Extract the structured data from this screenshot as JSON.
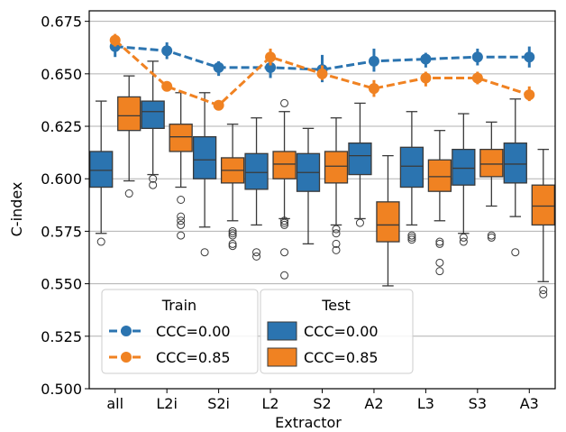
{
  "chart_data": {
    "type": "box+pointplot",
    "xlabel": "Extractor",
    "ylabel": "C-index",
    "ylim": [
      0.5,
      0.68
    ],
    "yticks": [
      "0.500",
      "0.525",
      "0.550",
      "0.575",
      "0.600",
      "0.625",
      "0.650",
      "0.675"
    ],
    "categories": [
      "all",
      "L2i",
      "S2i",
      "L2",
      "S2",
      "A2",
      "L3",
      "S3",
      "A3"
    ],
    "grid": "horizontal",
    "legend_placement": "lower-left",
    "legends": {
      "train": {
        "title": "Train",
        "entries": [
          "CCC=0.00",
          "CCC=0.85"
        ]
      },
      "test": {
        "title": "Test",
        "entries": [
          "CCC=0.00",
          "CCC=0.85"
        ]
      }
    },
    "colors": {
      "ccc_0_00": "#2b74b0",
      "ccc_0_85": "#f08222"
    },
    "train_series": [
      {
        "name": "CCC=0.00",
        "values": [
          0.663,
          0.661,
          0.653,
          0.653,
          0.652,
          0.656,
          0.657,
          0.658,
          0.658
        ],
        "err_low": [
          0.658,
          0.657,
          0.649,
          0.648,
          0.646,
          0.651,
          0.653,
          0.654,
          0.653
        ],
        "err_high": [
          0.667,
          0.665,
          0.656,
          0.658,
          0.659,
          0.662,
          0.66,
          0.662,
          0.663
        ]
      },
      {
        "name": "CCC=0.85",
        "values": [
          0.666,
          0.644,
          0.635,
          0.658,
          0.65,
          0.643,
          0.648,
          0.648,
          0.64
        ],
        "err_low": [
          0.663,
          0.642,
          0.633,
          0.654,
          0.647,
          0.639,
          0.644,
          0.645,
          0.637
        ],
        "err_high": [
          0.669,
          0.646,
          0.637,
          0.662,
          0.654,
          0.647,
          0.651,
          0.651,
          0.644
        ]
      }
    ],
    "test_series": [
      {
        "name": "CCC=0.00",
        "boxes": [
          {
            "whislo": 0.574,
            "q1": 0.596,
            "med": 0.604,
            "q3": 0.613,
            "whishi": 0.637,
            "fliers": [
              0.57
            ]
          },
          {
            "whislo": 0.602,
            "q1": 0.624,
            "med": 0.632,
            "q3": 0.637,
            "whishi": 0.656,
            "fliers": [
              0.6,
              0.597
            ]
          },
          {
            "whislo": 0.577,
            "q1": 0.6,
            "med": 0.609,
            "q3": 0.62,
            "whishi": 0.641,
            "fliers": [
              0.565
            ]
          },
          {
            "whislo": 0.578,
            "q1": 0.595,
            "med": 0.603,
            "q3": 0.612,
            "whishi": 0.629,
            "fliers": [
              0.565,
              0.563
            ]
          },
          {
            "whislo": 0.569,
            "q1": 0.594,
            "med": 0.603,
            "q3": 0.612,
            "whishi": 0.624,
            "fliers": []
          },
          {
            "whislo": 0.581,
            "q1": 0.602,
            "med": 0.611,
            "q3": 0.617,
            "whishi": 0.636,
            "fliers": [
              0.579
            ]
          },
          {
            "whislo": 0.578,
            "q1": 0.596,
            "med": 0.606,
            "q3": 0.615,
            "whishi": 0.632,
            "fliers": [
              0.573,
              0.572,
              0.571
            ]
          },
          {
            "whislo": 0.574,
            "q1": 0.597,
            "med": 0.605,
            "q3": 0.614,
            "whishi": 0.631,
            "fliers": [
              0.572,
              0.57
            ]
          },
          {
            "whislo": 0.582,
            "q1": 0.598,
            "med": 0.607,
            "q3": 0.617,
            "whishi": 0.638,
            "fliers": [
              0.565
            ]
          }
        ]
      },
      {
        "name": "CCC=0.85",
        "boxes": [
          {
            "whislo": 0.599,
            "q1": 0.623,
            "med": 0.63,
            "q3": 0.639,
            "whishi": 0.649,
            "fliers": [
              0.593
            ]
          },
          {
            "whislo": 0.596,
            "q1": 0.613,
            "med": 0.62,
            "q3": 0.626,
            "whishi": 0.641,
            "fliers": [
              0.59,
              0.582,
              0.58,
              0.578,
              0.573
            ]
          },
          {
            "whislo": 0.58,
            "q1": 0.598,
            "med": 0.604,
            "q3": 0.61,
            "whishi": 0.626,
            "fliers": [
              0.575,
              0.574,
              0.573,
              0.569,
              0.568
            ]
          },
          {
            "whislo": 0.581,
            "q1": 0.6,
            "med": 0.607,
            "q3": 0.613,
            "whishi": 0.632,
            "fliers": [
              0.636,
              0.58,
              0.579,
              0.578,
              0.565,
              0.554
            ]
          },
          {
            "whislo": 0.578,
            "q1": 0.598,
            "med": 0.606,
            "q3": 0.613,
            "whishi": 0.629,
            "fliers": [
              0.576,
              0.574,
              0.569,
              0.566
            ]
          },
          {
            "whislo": 0.549,
            "q1": 0.57,
            "med": 0.578,
            "q3": 0.589,
            "whishi": 0.611,
            "fliers": []
          },
          {
            "whislo": 0.58,
            "q1": 0.594,
            "med": 0.601,
            "q3": 0.609,
            "whishi": 0.623,
            "fliers": [
              0.57,
              0.569,
              0.56,
              0.556
            ]
          },
          {
            "whislo": 0.587,
            "q1": 0.601,
            "med": 0.607,
            "q3": 0.614,
            "whishi": 0.627,
            "fliers": [
              0.573,
              0.572
            ]
          },
          {
            "whislo": 0.551,
            "q1": 0.578,
            "med": 0.587,
            "q3": 0.597,
            "whishi": 0.614,
            "fliers": [
              0.547,
              0.545
            ]
          }
        ]
      }
    ]
  }
}
